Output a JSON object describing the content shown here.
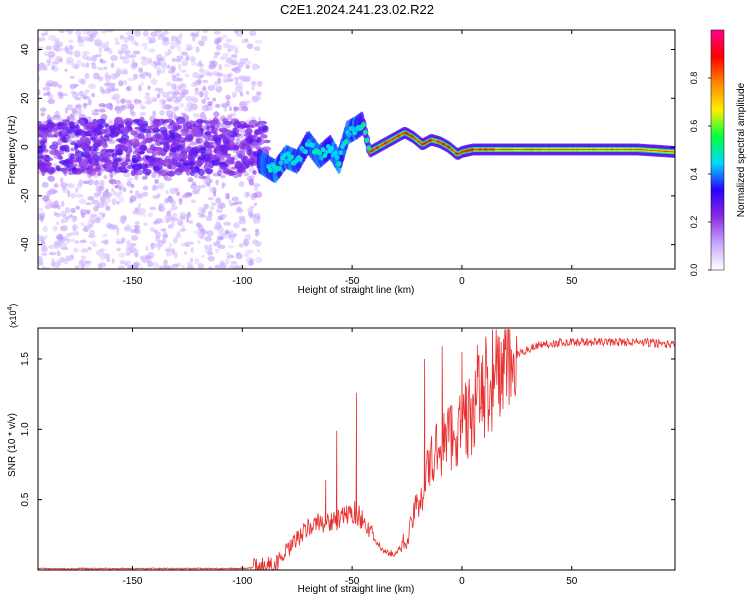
{
  "title": "C2E1.2024.241.23.02.R22",
  "colors": {
    "snr_line": "#e8312f",
    "trace": "#7a1f0e",
    "frame": "#000000"
  },
  "chart_data": [
    {
      "type": "heatmap",
      "name": "spectrogram",
      "title": "C2E1.2024.241.23.02.R22",
      "xlabel": "Height of straight line (km)",
      "ylabel": "Frequency (Hz)",
      "xlim": [
        -193,
        97
      ],
      "ylim": [
        -50,
        48
      ],
      "xticks": [
        -150,
        -100,
        -50,
        0,
        50
      ],
      "yticks": [
        -40,
        -20,
        0,
        20,
        40
      ],
      "colorbar": {
        "label": "Normalized spectral amplitude",
        "range": [
          0,
          1
        ],
        "ticks": [
          "0.0",
          "0.2",
          "0.4",
          "0.6",
          "0.8"
        ],
        "tick_values": [
          0.0,
          0.2,
          0.4,
          0.6,
          0.8
        ],
        "stops": [
          "#ffffff",
          "#c7a6ff",
          "#8a2be2",
          "#2a00ff",
          "#00d8ff",
          "#00ff40",
          "#ffee00",
          "#ff8800",
          "#ff0000",
          "#ff0090"
        ]
      },
      "frequency_trace": {
        "x": [
          -92,
          -85,
          -80,
          -75,
          -70,
          -65,
          -60,
          -56,
          -52,
          -48,
          -45,
          -42,
          -38,
          -34,
          -30,
          -26,
          -22,
          -18,
          -14,
          -10,
          -6,
          -2,
          0,
          5,
          10,
          20,
          40,
          60,
          80,
          97
        ],
        "y": [
          -6,
          -10,
          -4,
          -6,
          2,
          -4,
          0,
          -6,
          6,
          8,
          10,
          -2,
          0,
          2,
          4,
          6,
          4,
          1,
          3,
          2,
          0,
          -3,
          -2,
          -1,
          -1,
          -1,
          -1,
          -1,
          -1,
          -2
        ]
      }
    },
    {
      "type": "line",
      "name": "snr",
      "xlabel": "Height of straight line (km)",
      "ylabel": "SNR (10 * v/v)",
      "y_multiplier": "(x10",
      "y_multiplier_exp": "4",
      "xlim": [
        -193,
        97
      ],
      "ylim": [
        0,
        1.72
      ],
      "xticks": [
        -150,
        -100,
        -50,
        0,
        50
      ],
      "yticks": [
        0.5,
        1.0,
        1.5
      ],
      "ytick_labels": [
        "0.5",
        "1.0",
        "1.5"
      ],
      "envelope": {
        "x": [
          -193,
          -100,
          -92,
          -85,
          -80,
          -75,
          -70,
          -65,
          -60,
          -55,
          -50,
          -45,
          -40,
          -35,
          -30,
          -25,
          -20,
          -15,
          -10,
          -5,
          0,
          5,
          10,
          15,
          20,
          25,
          30,
          35,
          40,
          50,
          60,
          70,
          80,
          90,
          97
        ],
        "y": [
          0.01,
          0.01,
          0.02,
          0.04,
          0.12,
          0.22,
          0.3,
          0.34,
          0.34,
          0.36,
          0.42,
          0.36,
          0.22,
          0.12,
          0.12,
          0.22,
          0.48,
          0.72,
          0.9,
          0.96,
          1.02,
          1.12,
          1.28,
          1.38,
          1.46,
          1.52,
          1.57,
          1.6,
          1.61,
          1.62,
          1.62,
          1.62,
          1.62,
          1.61,
          1.6
        ]
      },
      "spikes": [
        {
          "x": -48,
          "y": 1.26
        },
        {
          "x": -57,
          "y": 0.99
        },
        {
          "x": -62,
          "y": 0.64
        },
        {
          "x": -17,
          "y": 1.5
        },
        {
          "x": -9,
          "y": 1.59
        },
        {
          "x": 0,
          "y": 1.55
        },
        {
          "x": 7,
          "y": 1.6
        },
        {
          "x": 14,
          "y": 1.55
        }
      ]
    }
  ]
}
